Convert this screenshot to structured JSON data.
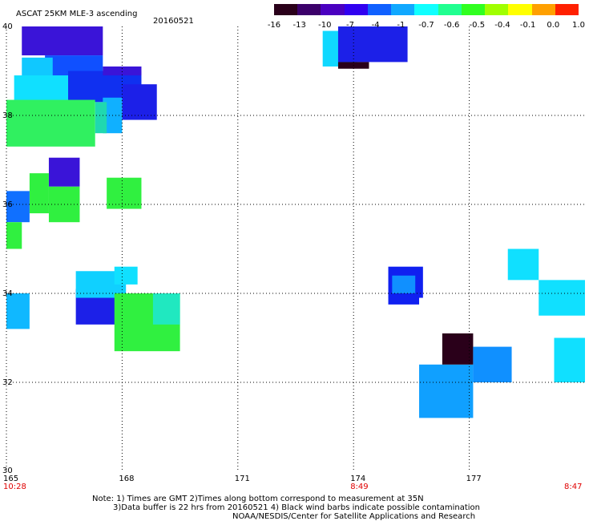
{
  "header": {
    "title": "ASCAT 25KM MLE-3 ascending",
    "date": "20160521"
  },
  "colorbar": {
    "labels": [
      "-16",
      "-13",
      "-10",
      "-7",
      "-4",
      "-1",
      "-0.7",
      "-0.6",
      "-0.5",
      "-0.4",
      "-0.1",
      "0.0",
      "1.0"
    ],
    "colors": [
      "#2a001a",
      "#3b006a",
      "#4a00c0",
      "#3000f0",
      "#1060ff",
      "#10a8ff",
      "#10ffff",
      "#20ff90",
      "#30ff20",
      "#a0ff00",
      "#ffff00",
      "#ffa000",
      "#ff2000"
    ]
  },
  "axes": {
    "y_labels": [
      "40",
      "38",
      "36",
      "34",
      "32",
      "30"
    ],
    "x_labels": [
      "165",
      "168",
      "171",
      "174",
      "177"
    ],
    "time_labels": [
      {
        "x": "165",
        "time": "10:28"
      },
      {
        "x": "174",
        "time": "8:49"
      },
      {
        "x": "180",
        "time": "8:47"
      }
    ]
  },
  "notes": {
    "line1": "Note: 1) Times are GMT 2)Times along bottom correspond to measurement at 35N",
    "line2": "3)Data buffer is 22 hrs from 20160521 4) Black wind barbs indicate possible contamination",
    "line3": "NOAA/NESDIS/Center for Satellite Applications and Research"
  },
  "map_data": {
    "lon_range": [
      165,
      180
    ],
    "lat_range": [
      30,
      40
    ],
    "blocks": [
      {
        "lon": [
          165.4,
          167.5
        ],
        "lat": [
          39.35,
          40.0
        ],
        "color": "#3a14d8"
      },
      {
        "lon": [
          166.0,
          167.5
        ],
        "lat": [
          38.8,
          39.35
        ],
        "color": "#1050ff"
      },
      {
        "lon": [
          165.4,
          166.2
        ],
        "lat": [
          38.5,
          39.3
        ],
        "color": "#10c8ff"
      },
      {
        "lon": [
          165.2,
          166.6
        ],
        "lat": [
          38.3,
          38.9
        ],
        "color": "#10e0ff"
      },
      {
        "lon": [
          166.6,
          168.5
        ],
        "lat": [
          38.3,
          39.0
        ],
        "color": "#1030f0"
      },
      {
        "lon": [
          167.5,
          168.5
        ],
        "lat": [
          38.9,
          39.1
        ],
        "color": "#3a14d8"
      },
      {
        "lon": [
          168.0,
          168.9
        ],
        "lat": [
          37.9,
          38.7
        ],
        "color": "#1c20e8"
      },
      {
        "lon": [
          167.5,
          168.0
        ],
        "lat": [
          37.6,
          38.4
        ],
        "color": "#10b0ff"
      },
      {
        "lon": [
          165.0,
          167.3
        ],
        "lat": [
          37.3,
          38.35
        ],
        "color": "#30f060"
      },
      {
        "lon": [
          167.3,
          167.6
        ],
        "lat": [
          37.6,
          38.3
        ],
        "color": "#20d8b0"
      },
      {
        "lon": [
          166.1,
          166.9
        ],
        "lat": [
          36.4,
          37.05
        ],
        "color": "#3a14d8"
      },
      {
        "lon": [
          165.6,
          166.1
        ],
        "lat": [
          35.8,
          36.7
        ],
        "color": "#30f040"
      },
      {
        "lon": [
          166.1,
          166.9
        ],
        "lat": [
          35.6,
          36.4
        ],
        "color": "#30f040"
      },
      {
        "lon": [
          167.6,
          168.5
        ],
        "lat": [
          35.9,
          36.6
        ],
        "color": "#30f040"
      },
      {
        "lon": [
          165.0,
          165.6
        ],
        "lat": [
          35.6,
          36.3
        ],
        "color": "#1070ff"
      },
      {
        "lon": [
          165.0,
          165.4
        ],
        "lat": [
          35.0,
          35.6
        ],
        "color": "#30f040"
      },
      {
        "lon": [
          165.0,
          165.6
        ],
        "lat": [
          33.2,
          34.0
        ],
        "color": "#10b8ff"
      },
      {
        "lon": [
          166.8,
          167.9
        ],
        "lat": [
          33.3,
          34.1
        ],
        "color": "#1c20e8"
      },
      {
        "lon": [
          166.8,
          168.1
        ],
        "lat": [
          33.9,
          34.5
        ],
        "color": "#10d0ff"
      },
      {
        "lon": [
          167.8,
          168.4
        ],
        "lat": [
          34.2,
          34.6
        ],
        "color": "#10e0ff"
      },
      {
        "lon": [
          167.8,
          169.5
        ],
        "lat": [
          32.7,
          34.0
        ],
        "color": "#30f040"
      },
      {
        "lon": [
          168.8,
          169.5
        ],
        "lat": [
          33.3,
          34.0
        ],
        "color": "#20e8c0"
      },
      {
        "lon": [
          174.9,
          175.8
        ],
        "lat": [
          33.9,
          34.6
        ],
        "color": "#1020f0"
      },
      {
        "lon": [
          175.0,
          175.6
        ],
        "lat": [
          34.0,
          34.4
        ],
        "color": "#1090ff"
      },
      {
        "lon": [
          174.9,
          175.7
        ],
        "lat": [
          33.75,
          33.95
        ],
        "color": "#1020f0"
      },
      {
        "lon": [
          175.7,
          177.1
        ],
        "lat": [
          31.2,
          32.4
        ],
        "color": "#10a0ff"
      },
      {
        "lon": [
          176.3,
          177.1
        ],
        "lat": [
          32.4,
          33.1
        ],
        "color": "#2a001a"
      },
      {
        "lon": [
          177.1,
          178.1
        ],
        "lat": [
          32.0,
          32.8
        ],
        "color": "#1090ff"
      },
      {
        "lon": [
          178.0,
          178.8
        ],
        "lat": [
          34.3,
          35.0
        ],
        "color": "#10e0ff"
      },
      {
        "lon": [
          178.8,
          180.0
        ],
        "lat": [
          33.5,
          34.3
        ],
        "color": "#10e0ff"
      },
      {
        "lon": [
          179.2,
          180.0
        ],
        "lat": [
          32.0,
          33.0
        ],
        "color": "#10e0ff"
      },
      {
        "lon": [
          173.2,
          174.1
        ],
        "lat": [
          39.1,
          39.9
        ],
        "color": "#10d8ff"
      },
      {
        "lon": [
          173.6,
          175.4
        ],
        "lat": [
          39.2,
          40.0
        ],
        "color": "#1c20e8"
      },
      {
        "lon": [
          173.6,
          174.4
        ],
        "lat": [
          39.05,
          39.2
        ],
        "color": "#2a001a"
      }
    ]
  }
}
